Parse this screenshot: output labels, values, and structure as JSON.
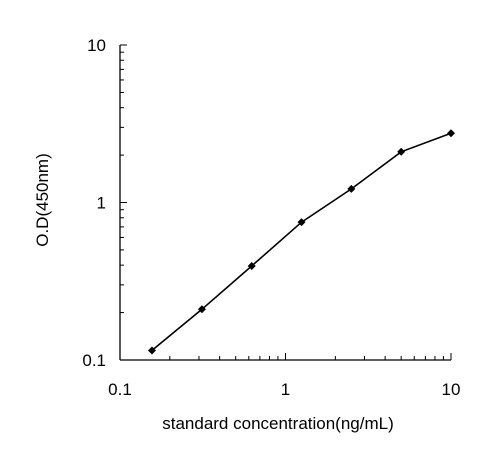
{
  "chart_data": {
    "type": "line",
    "title": "",
    "xlabel": "standard concentration(ng/mL)",
    "ylabel": "O.D(450nm)",
    "xscale": "log",
    "yscale": "log",
    "xlim": [
      0.1,
      10
    ],
    "ylim": [
      0.1,
      10
    ],
    "x_ticks": [
      {
        "value": 0.1,
        "label": "0.1"
      },
      {
        "value": 1,
        "label": "1"
      },
      {
        "value": 10,
        "label": "10"
      }
    ],
    "y_ticks": [
      {
        "value": 0.1,
        "label": "0.1"
      },
      {
        "value": 1,
        "label": "1"
      },
      {
        "value": 10,
        "label": "10"
      }
    ],
    "grid": false,
    "legend": "none",
    "series": [
      {
        "x": [
          0.156,
          0.3125,
          0.625,
          1.25,
          2.5,
          5,
          10
        ],
        "y": [
          0.115,
          0.21,
          0.395,
          0.75,
          1.22,
          2.1,
          2.75
        ],
        "color": "#000000",
        "marker": "diamond"
      }
    ]
  }
}
